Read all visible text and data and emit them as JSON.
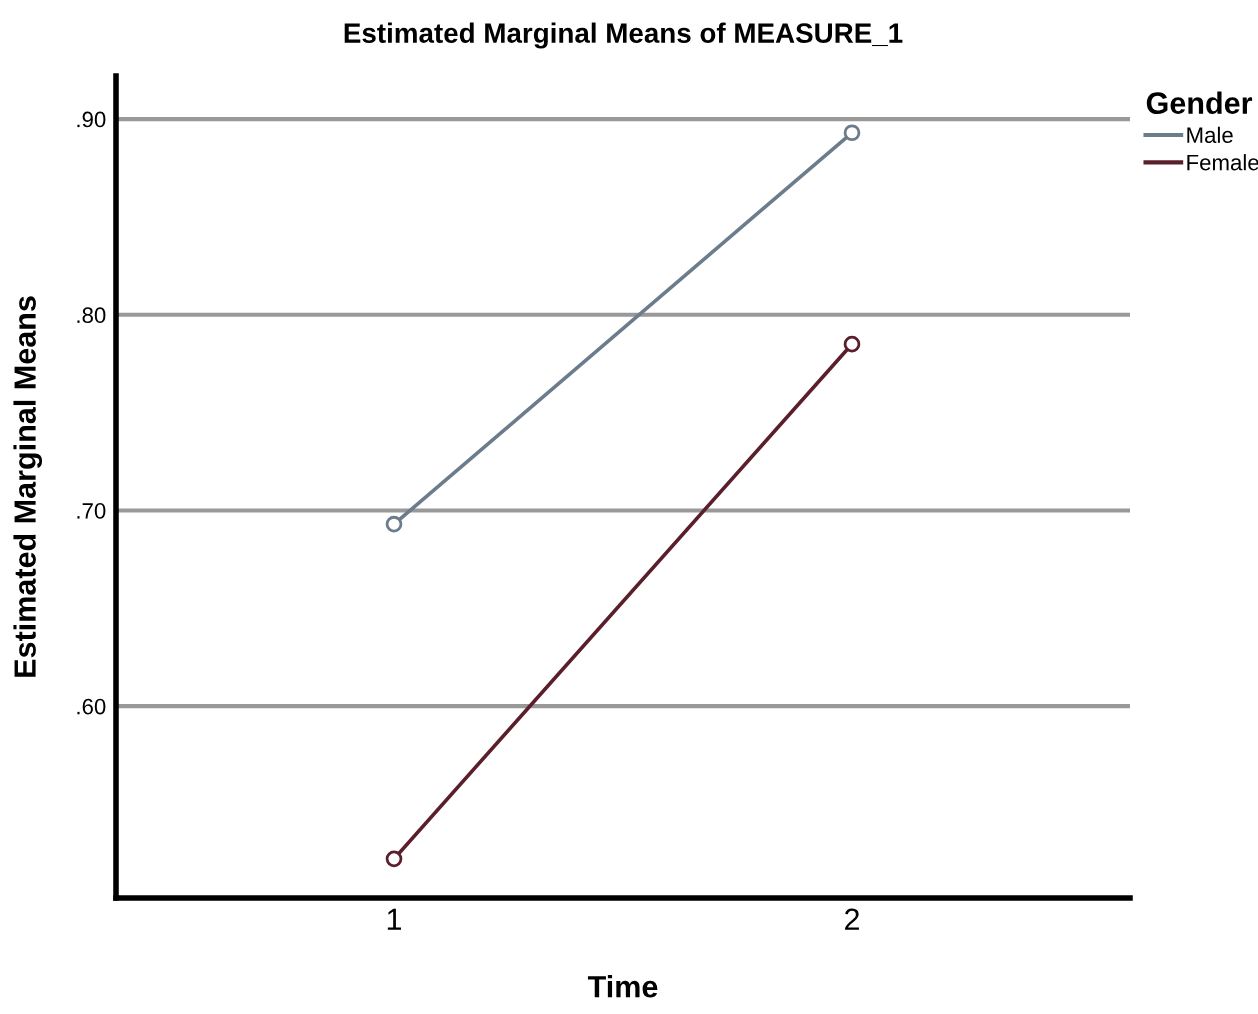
{
  "chart_data": {
    "type": "line",
    "title": "Estimated Marginal Means of MEASURE_1",
    "xlabel": "Time",
    "ylabel": "Estimated Marginal Means",
    "legend_title": "Gender",
    "categories": [
      "1",
      "2"
    ],
    "series": [
      {
        "name": "Male",
        "color": "#6b7c8c",
        "values": [
          0.693,
          0.893
        ]
      },
      {
        "name": "Female",
        "color": "#5a1f2b",
        "values": [
          0.522,
          0.785
        ]
      }
    ],
    "ylim": [
      0.502,
      0.922
    ],
    "yticks": [
      {
        "value": 0.6,
        "label": ".60"
      },
      {
        "value": 0.7,
        "label": ".70"
      },
      {
        "value": 0.8,
        "label": ".80"
      },
      {
        "value": 0.9,
        "label": ".90"
      }
    ],
    "grid": "y",
    "legend": "top right",
    "marker": "circle",
    "line_style": "solid"
  }
}
